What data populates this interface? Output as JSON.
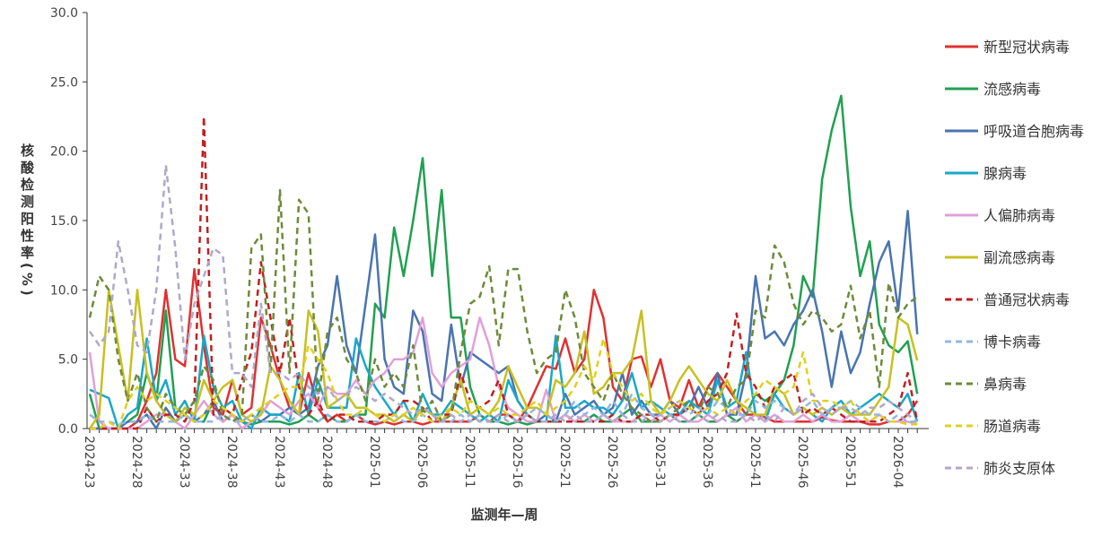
{
  "chart_data": {
    "type": "line",
    "x_label": "监测年—周",
    "y_label": "核酸检测阳性率(%)",
    "categories": [
      "2024-23",
      null,
      null,
      null,
      null,
      "2024-28",
      null,
      null,
      null,
      null,
      "2024-33",
      null,
      null,
      null,
      null,
      "2024-38",
      null,
      null,
      null,
      null,
      "2024-43",
      null,
      null,
      null,
      null,
      "2024-48",
      null,
      null,
      null,
      null,
      "2025-01",
      null,
      null,
      null,
      null,
      "2025-06",
      null,
      null,
      null,
      null,
      "2025-11",
      null,
      null,
      null,
      null,
      "2025-16",
      null,
      null,
      null,
      null,
      "2025-21",
      null,
      null,
      null,
      null,
      "2025-26",
      null,
      null,
      null,
      null,
      "2025-31",
      null,
      null,
      null,
      null,
      "2025-36",
      null,
      null,
      null,
      null,
      "2025-41",
      null,
      null,
      null,
      null,
      "2025-46",
      null,
      null,
      null,
      null,
      "2025-51",
      null,
      null,
      null,
      null,
      "2026-04",
      null,
      null
    ],
    "ylim": [
      0,
      30
    ],
    "yticks": [
      {
        "value": 0,
        "label": "0.0"
      },
      {
        "value": 5,
        "label": "5.0"
      },
      {
        "value": 10,
        "label": "10.0"
      },
      {
        "value": 15,
        "label": "15.0"
      },
      {
        "value": 20,
        "label": "20.0"
      },
      {
        "value": 25,
        "label": "25.0"
      },
      {
        "value": 30,
        "label": "30.0"
      }
    ],
    "series": [
      {
        "name": "新型冠状病毒",
        "color": "#e03030",
        "dashed": false,
        "values": [
          0,
          0,
          0,
          0,
          0,
          0.5,
          2,
          4,
          10,
          5,
          4.5,
          11.5,
          6,
          1.5,
          1,
          3.5,
          1,
          1.5,
          8,
          6,
          3.5,
          1.5,
          1,
          4,
          1.5,
          0.5,
          1,
          0.5,
          1,
          0.5,
          0.3,
          0.5,
          0.3,
          0.5,
          0.5,
          0.3,
          0.5,
          0.5,
          0.5,
          0.5,
          0.5,
          1,
          0.5,
          1,
          1,
          0.5,
          1.5,
          3,
          4.5,
          4.3,
          6.5,
          4,
          5,
          10,
          8,
          3,
          2,
          5,
          5.2,
          3,
          5,
          2,
          1.5,
          3.5,
          1.5,
          3,
          4,
          3,
          2,
          1,
          1,
          0.8,
          0.5,
          0.5,
          0.5,
          0.5,
          0.5,
          0.8,
          0.6,
          0.5,
          0.5,
          0.5,
          0.3,
          0.3,
          0.5,
          0.5,
          1,
          2
        ]
      },
      {
        "name": "流感病毒",
        "color": "#20a050",
        "dashed": false,
        "values": [
          2.5,
          0,
          0,
          0,
          0.5,
          1,
          4,
          2,
          8.5,
          1.5,
          1,
          0.5,
          0.5,
          2,
          0.5,
          1,
          0.5,
          0.3,
          0.5,
          0.5,
          0.5,
          0.3,
          0.5,
          1,
          0.5,
          1,
          0.5,
          0.5,
          1,
          1,
          9,
          8,
          14.5,
          11,
          15,
          19.5,
          11,
          17.2,
          8,
          8,
          3,
          1,
          0.5,
          0.5,
          0.3,
          0.5,
          0.3,
          0.5,
          0.5,
          0.5,
          1,
          0.5,
          0.5,
          1,
          0.5,
          0.5,
          1,
          1.5,
          0.5,
          0.5,
          0.5,
          1,
          0.5,
          0.5,
          1,
          0.5,
          0.5,
          1,
          0.5,
          1,
          2.5,
          2,
          2.5,
          3.5,
          6,
          11,
          9.5,
          18,
          21.5,
          24,
          16,
          11,
          13.5,
          7.5,
          6,
          5.5,
          6.3,
          2.5
        ]
      },
      {
        "name": "呼吸道合胞病毒",
        "color": "#4a74b0",
        "dashed": false,
        "values": [
          0,
          0,
          0,
          0,
          0.5,
          0.5,
          1,
          0,
          1.5,
          0.5,
          1,
          0.5,
          1,
          2,
          0.5,
          1,
          0.5,
          1,
          0.5,
          1,
          1,
          1.5,
          1,
          1.5,
          4.5,
          6,
          11,
          6,
          4,
          9,
          14,
          5,
          3,
          2.5,
          8.5,
          7,
          2.5,
          2,
          7.5,
          3,
          5.5,
          5,
          4.5,
          4,
          4.5,
          2,
          1,
          0.5,
          1,
          0.5,
          2.5,
          1,
          1.5,
          2,
          1,
          1.5,
          4,
          1,
          2,
          1,
          1,
          2,
          1,
          1.5,
          3,
          1.5,
          4,
          1,
          1,
          4,
          11,
          6.5,
          7,
          6,
          7.5,
          8.5,
          10,
          7,
          3,
          7,
          4,
          5.5,
          9,
          12,
          13.5,
          8.5,
          15.7,
          6.8
        ]
      },
      {
        "name": "腺病毒",
        "color": "#18a8c8",
        "dashed": false,
        "values": [
          2.8,
          2.5,
          2.2,
          0,
          1,
          1.5,
          6.5,
          2,
          3.5,
          1,
          2,
          0.5,
          6.7,
          3,
          1.5,
          2,
          0.5,
          0,
          1.5,
          1,
          1,
          0.5,
          4,
          1,
          3.5,
          1.5,
          1.5,
          1.5,
          6.5,
          4.5,
          3,
          2,
          1,
          2,
          0.5,
          2.5,
          1,
          1,
          2,
          1.5,
          1,
          0.5,
          1,
          0.5,
          3.5,
          2,
          1,
          0.5,
          0.5,
          6.7,
          1.5,
          1.5,
          2,
          1.5,
          1.5,
          1,
          2,
          4,
          1.5,
          2,
          1.5,
          1,
          1,
          2,
          1.5,
          1,
          3.5,
          1.5,
          2,
          5.5,
          1,
          0.5,
          2.5,
          1.5,
          1,
          1.5,
          1,
          0.5,
          1.5,
          2,
          1,
          1.5,
          2,
          2.5,
          2,
          1.5,
          2.5,
          0.5
        ]
      },
      {
        "name": "人偏肺病毒",
        "color": "#e0a0d8",
        "dashed": false,
        "values": [
          5.5,
          0.5,
          0,
          0,
          0,
          0,
          0.5,
          1,
          1,
          0.5,
          0,
          1,
          2,
          1,
          0.5,
          1,
          0,
          0.5,
          1,
          2,
          1.5,
          1,
          2,
          2.5,
          1.5,
          3,
          2.5,
          2.5,
          3.5,
          2.5,
          3.5,
          4,
          5,
          5,
          5.5,
          8,
          4,
          3,
          4,
          4.5,
          5,
          8,
          6,
          3,
          1.5,
          1,
          0.5,
          0.5,
          2.8,
          0.5,
          1,
          0.5,
          1,
          0.5,
          1,
          0.5,
          0.5,
          0.5,
          1,
          0.5,
          1,
          0.5,
          1,
          0.5,
          0.5,
          1,
          0.5,
          1,
          1.5,
          0.5,
          1,
          0.5,
          1,
          0.5,
          0.5,
          1,
          0.5,
          1,
          0.5,
          0.5,
          1,
          0.5,
          0.5,
          1,
          0.5,
          0.5,
          0.5,
          0.3
        ]
      },
      {
        "name": "副流感病毒",
        "color": "#c8c020",
        "dashed": false,
        "values": [
          0,
          1,
          10,
          6,
          2,
          10,
          4,
          2,
          1,
          0.5,
          1.5,
          1,
          3.5,
          2,
          3,
          3.5,
          1,
          0.5,
          1,
          4.5,
          3.5,
          2,
          1,
          8.5,
          7,
          1.5,
          2,
          2.5,
          1.5,
          1.5,
          1,
          1,
          0.5,
          1,
          0.5,
          1.5,
          1,
          0.5,
          1.5,
          3.5,
          1,
          1.5,
          1,
          2,
          4.5,
          3,
          1.5,
          1.5,
          1,
          3.5,
          3,
          4,
          7,
          2.5,
          3,
          4,
          4,
          5,
          8.5,
          2,
          1,
          2,
          3.5,
          4.5,
          3.5,
          2.5,
          2,
          3.5,
          2,
          1.5,
          1,
          1,
          3,
          2.5,
          1,
          1.5,
          1,
          1.5,
          1,
          1.5,
          1,
          1,
          1,
          2,
          3,
          8,
          7.5,
          4.9
        ]
      },
      {
        "name": "普通冠状病毒",
        "color": "#c02020",
        "dashed": true,
        "values": [
          0,
          0,
          0,
          0,
          0,
          0,
          1.5,
          0.5,
          1,
          1,
          0.5,
          2,
          22.5,
          1,
          1.5,
          1,
          3.5,
          5.5,
          12,
          8,
          4,
          8,
          3,
          1,
          2,
          0.5,
          1,
          1,
          0.5,
          0.5,
          0.5,
          1,
          1,
          2,
          2,
          1.5,
          0.5,
          1,
          1,
          4,
          2,
          1.5,
          2,
          3.5,
          1,
          0.5,
          1,
          0.5,
          0.5,
          0.5,
          0.5,
          0.5,
          0.5,
          0.5,
          0.5,
          1,
          0.5,
          0.5,
          1,
          1,
          0.5,
          1,
          1,
          1.5,
          1,
          2,
          2.5,
          4,
          8.3,
          4,
          3,
          1.5,
          3,
          3.5,
          4,
          1,
          1.5,
          1,
          1.5,
          1,
          0.5,
          0.5,
          0.5,
          0.5,
          1,
          1.5,
          4,
          0.5
        ]
      },
      {
        "name": "博卡病毒",
        "color": "#90b8e0",
        "dashed": true,
        "values": [
          1,
          0.5,
          0.5,
          0.3,
          0.5,
          0.5,
          1,
          0.5,
          0.5,
          0.5,
          1,
          0.5,
          0.5,
          0.5,
          1,
          0.5,
          0.5,
          1,
          0.5,
          0.5,
          1,
          0.5,
          1,
          0.5,
          0.5,
          1,
          0.5,
          0.5,
          1,
          0.5,
          0.5,
          0.5,
          1,
          0.5,
          0.5,
          1,
          0.5,
          0.5,
          0.5,
          1,
          0.5,
          1,
          0.5,
          0.5,
          1,
          0.5,
          1,
          1.5,
          1,
          0.5,
          1,
          2,
          1,
          1.5,
          1,
          2,
          1,
          2.5,
          1.5,
          1,
          1,
          1.5,
          2,
          1,
          1.5,
          1,
          2,
          1.5,
          1,
          1,
          2,
          1.5,
          2,
          1.5,
          1,
          1.5,
          2,
          1,
          1.5,
          1.5,
          2,
          1.5,
          1,
          1,
          0.5,
          1,
          0.5,
          0.5
        ]
      },
      {
        "name": "鼻病毒",
        "color": "#6e8a3a",
        "dashed": true,
        "values": [
          8,
          11,
          10,
          5,
          2,
          4,
          1.5,
          0.5,
          2.5,
          1.5,
          1,
          2,
          4.5,
          3.5,
          1,
          0.5,
          1,
          13,
          14,
          4,
          17.2,
          4,
          16.5,
          15.5,
          2,
          7,
          8,
          5,
          4,
          2,
          5,
          3,
          4,
          3,
          6,
          1,
          2,
          0.5,
          1,
          5.5,
          9,
          9.5,
          11.7,
          6,
          11.5,
          11.5,
          7,
          4,
          5,
          5.5,
          10,
          8,
          4,
          3,
          2,
          4,
          2.5,
          1.5,
          1,
          0.5,
          0.5,
          1,
          1.5,
          2,
          1,
          3,
          2.5,
          1.5,
          3,
          3.5,
          8.5,
          8,
          13.2,
          12,
          9,
          7.5,
          8.5,
          8,
          7,
          7.5,
          10.3,
          6.5,
          8.5,
          3,
          10.5,
          8,
          9,
          9.5
        ]
      },
      {
        "name": "肠道病毒",
        "color": "#e0d020",
        "dashed": true,
        "values": [
          0,
          0,
          0.5,
          0,
          2,
          3,
          2,
          2.5,
          2,
          1.5,
          1,
          0.5,
          1,
          2,
          1.5,
          1,
          0.5,
          1,
          1.5,
          2,
          2.5,
          3,
          3,
          6,
          5,
          4,
          2,
          1,
          1,
          1.5,
          1,
          0.5,
          1,
          1,
          1.5,
          1,
          0.5,
          1,
          1.5,
          1,
          2,
          1.5,
          1,
          1.5,
          1,
          1,
          1.5,
          2,
          1,
          1.5,
          2,
          3,
          4.5,
          3.5,
          6.5,
          4,
          3,
          2,
          2.5,
          1.5,
          1,
          1.5,
          2,
          1.5,
          1,
          1.5,
          1,
          1.5,
          1,
          2,
          2.5,
          3.5,
          3,
          2.5,
          3,
          5.5,
          2,
          2,
          2,
          1.5,
          2,
          1,
          0.5,
          1,
          0.5,
          0.5,
          0.3,
          0.3
        ]
      },
      {
        "name": "肺炎支原体",
        "color": "#b0a8c8",
        "dashed": true,
        "values": [
          7,
          6,
          7,
          13.5,
          10,
          6,
          5.5,
          10,
          19,
          13,
          5,
          9,
          11,
          13,
          12.5,
          4,
          4,
          3,
          9,
          4,
          4,
          3.5,
          4,
          3,
          2.5,
          3,
          2,
          2.5,
          3,
          2.5,
          2,
          2.5,
          2,
          1.5,
          1,
          1.5,
          1,
          0.5,
          1,
          0.5,
          1,
          0.5,
          0.5,
          1,
          0.5,
          0.5,
          1,
          0.5,
          0.5,
          1,
          0.5,
          1,
          0.5,
          0.5,
          1,
          0.5,
          1,
          0.5,
          0.5,
          1,
          0.5,
          1,
          0.5,
          0.5,
          1,
          0.5,
          1,
          0.5,
          0.5,
          1,
          0.5,
          1,
          0.5,
          1.5,
          1,
          2,
          2.5,
          1.5,
          1,
          1.5,
          1.5,
          1,
          1.5,
          1.5,
          2,
          1.5,
          1,
          0.5
        ]
      }
    ]
  }
}
